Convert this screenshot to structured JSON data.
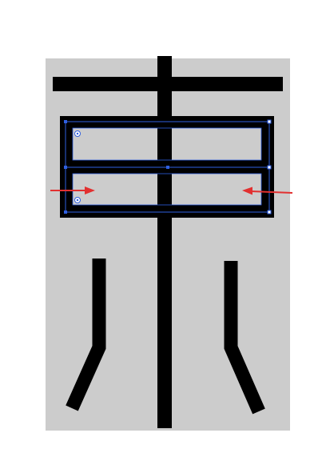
{
  "document": {
    "artboard_color": "#cccccc",
    "page_color": "#ffffff"
  },
  "glyph": {
    "stroke_color": "#000000"
  },
  "selection": {
    "color": "#2f5fe0",
    "handle_color": "#2f5fe0",
    "corner_widget_icon": "circle-dot-icon"
  },
  "annotations": {
    "arrow_color": "#e23030",
    "left_arrow_icon": "arrow-right-icon",
    "right_arrow_icon": "arrow-left-icon"
  }
}
